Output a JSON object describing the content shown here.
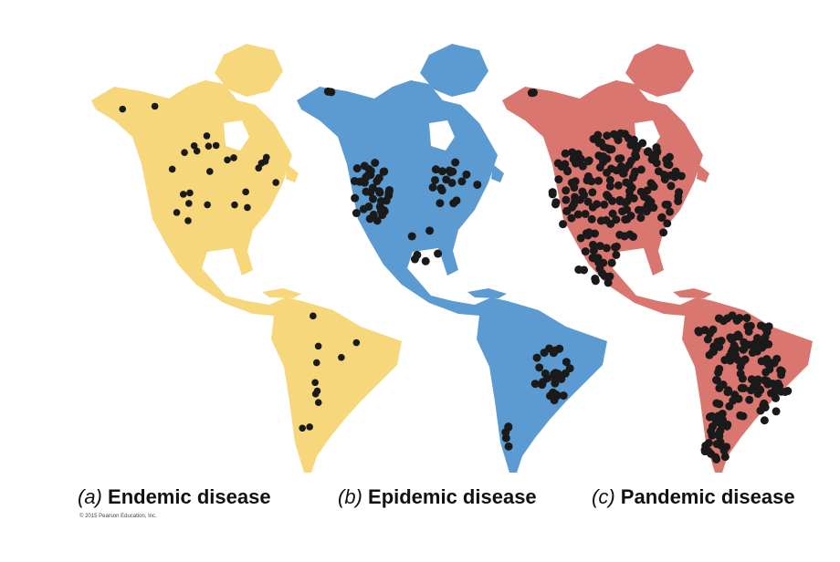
{
  "panels": [
    {
      "letter": "(a)",
      "label": "Endemic disease"
    },
    {
      "letter": "(b)",
      "label": "Epidemic disease"
    },
    {
      "letter": "(c)",
      "label": "Pandemic disease"
    }
  ],
  "copyright": "© 2015 Pearson Education, Inc."
}
